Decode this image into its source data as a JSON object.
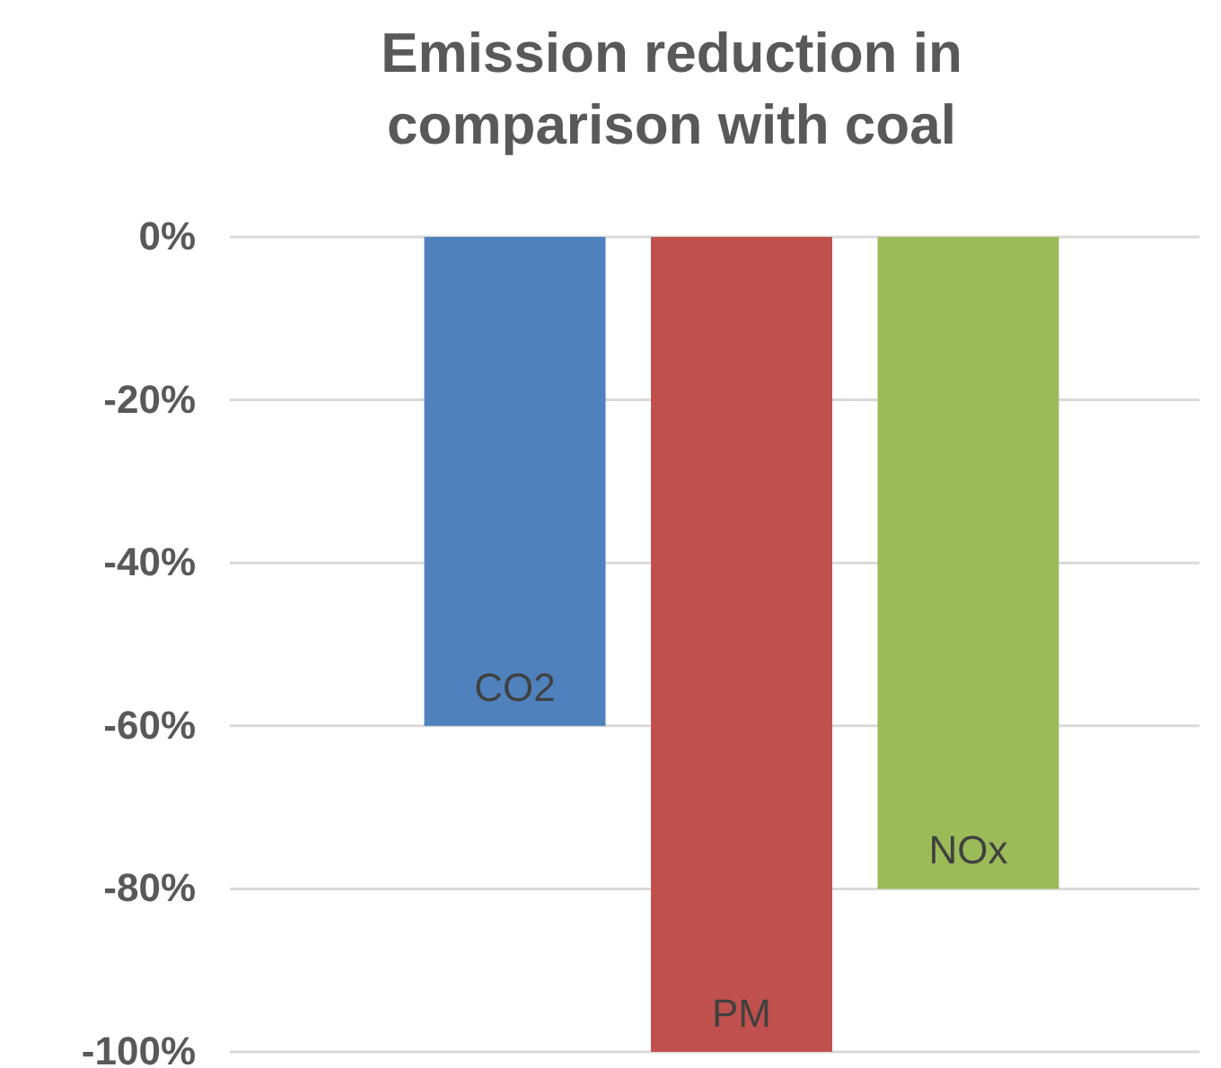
{
  "chart_data": {
    "type": "bar",
    "title": "Emission reduction in comparison with coal",
    "categories": [
      null
    ],
    "series": [
      {
        "name": "CO2",
        "color": "#4f81bd",
        "values": [
          -60
        ]
      },
      {
        "name": "PM",
        "color": "#c0504d",
        "values": [
          -100
        ]
      },
      {
        "name": "NOx",
        "color": "#9bbb59",
        "values": [
          -80
        ]
      }
    ],
    "ylim": [
      -100,
      0
    ],
    "yticks": [
      {
        "value": 0,
        "label": "0%"
      },
      {
        "value": -20,
        "label": "-20%"
      },
      {
        "value": -40,
        "label": "-40%"
      },
      {
        "value": -60,
        "label": "-60%"
      },
      {
        "value": -80,
        "label": "-80%"
      },
      {
        "value": -100,
        "label": "-100%"
      }
    ],
    "grid": "y",
    "legend": false
  }
}
